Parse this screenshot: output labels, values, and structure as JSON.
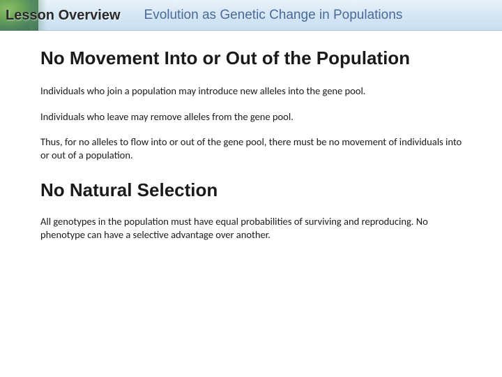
{
  "header": {
    "lesson_label": "Lesson Overview",
    "topic_title": "Evolution as Genetic Change in Populations"
  },
  "section1": {
    "heading": "No Movement Into or Out of the Population",
    "p1": "Individuals who join a population may introduce new alleles into the gene pool.",
    "p2": "Individuals who leave may remove alleles from the gene pool.",
    "p3": "Thus, for no alleles to flow into or out of the gene pool, there must be no movement of individuals into or out of a population."
  },
  "section2": {
    "heading": "No Natural Selection",
    "p1": "All genotypes in the population must have equal probabilities of surviving and reproducing. No phenotype can have a selective advantage over another."
  },
  "colors": {
    "header_gradient_top": "#e9f2fa",
    "header_gradient_bottom": "#c8dff0",
    "accent_green": "#3d7a45",
    "topic_color": "#4a6a9a",
    "text_color": "#1a1a1a",
    "background": "#ffffff"
  }
}
